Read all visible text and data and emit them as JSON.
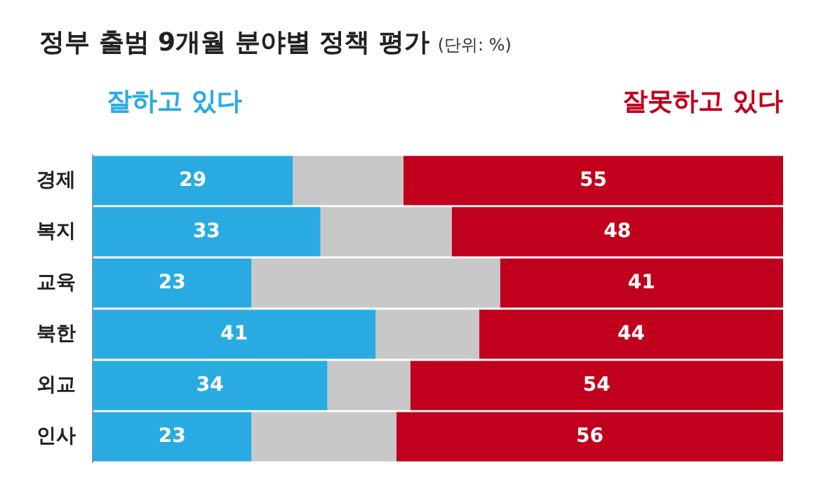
{
  "chart_data": {
    "type": "bar",
    "orientation": "horizontal",
    "stacked": true,
    "title": "정부 출범 9개월 분야별 정책 평가",
    "subtitle": "(단위: %)",
    "categories": [
      "경제",
      "복지",
      "교육",
      "북한",
      "외교",
      "인사"
    ],
    "xlim": [
      0,
      100
    ],
    "tick_labels": "y",
    "series": [
      {
        "name": "잘하고 있다",
        "color": "#29abe2",
        "values": [
          29,
          33,
          23,
          41,
          34,
          23
        ],
        "value_labels": [
          "29",
          "33",
          "23",
          "41",
          "34",
          "23"
        ]
      },
      {
        "color": "#c8c8c8",
        "values": [
          16,
          19,
          36,
          15,
          12,
          21
        ]
      },
      {
        "name": "잘못하고 있다",
        "color": "#c0001c",
        "values": [
          55,
          48,
          41,
          44,
          54,
          56
        ],
        "value_labels": [
          "55",
          "48",
          "41",
          "44",
          "54",
          "56"
        ]
      }
    ]
  }
}
